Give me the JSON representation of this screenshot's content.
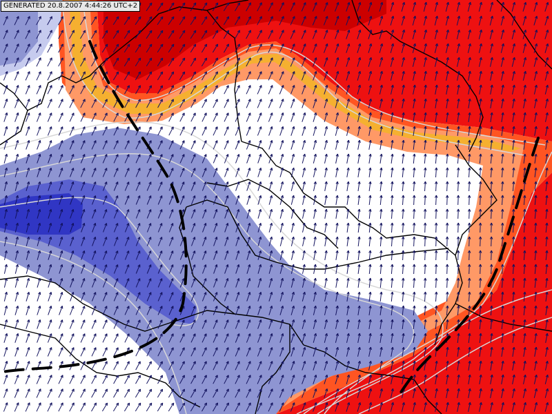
{
  "header": {
    "generated_label": "GENERATED 20.8.2007 4:44:26 UTC+2"
  },
  "map": {
    "colors": {
      "background": "#ffffff",
      "dark_red": "#cc0000",
      "red": "#ee1111",
      "orange_red": "#ff5522",
      "orange": "#ff9966",
      "gold": "#f5b030",
      "light_blue": "#c6cbee",
      "blue": "#8e95d2",
      "mid_blue": "#5a61cf",
      "dark_blue": "#3036c4",
      "isoline": "#d7d7d7",
      "border": "#000000",
      "arrow": "#12125e",
      "front": "#000000"
    },
    "layers": [
      "warm-sector-red",
      "warm-sector-orange",
      "cold-sector-blue",
      "isolines",
      "country-borders",
      "wind-arrows",
      "frontal-lines"
    ]
  }
}
